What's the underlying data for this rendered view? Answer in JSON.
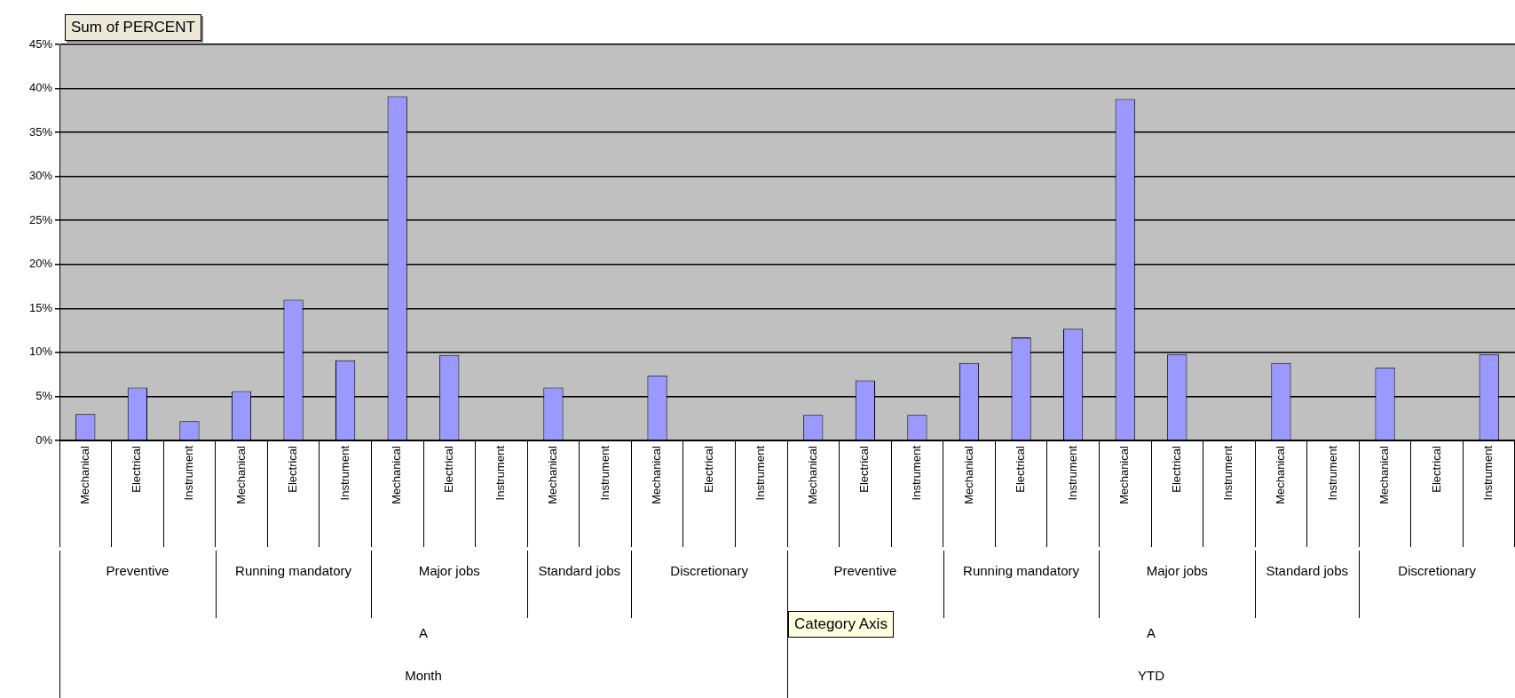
{
  "chart_data": {
    "type": "bar",
    "title": "Sum of PERCENT",
    "categories": [
      "Mechanical",
      "Electrical",
      "Instrument",
      "Mechanical",
      "Electrical",
      "Instrument",
      "Mechanical",
      "Electrical",
      "Instrument",
      "Mechanical",
      "Instrument",
      "Mechanical",
      "Electrical",
      "Instrument",
      "Mechanical",
      "Electrical",
      "Instrument",
      "Mechanical",
      "Electrical",
      "Instrument",
      "Mechanical",
      "Electrical",
      "Instrument",
      "Mechanical",
      "Instrument",
      "Mechanical",
      "Electrical",
      "Instrument"
    ],
    "values": [
      3.0,
      6.0,
      2.2,
      5.6,
      16.0,
      9.1,
      39.1,
      9.7,
      null,
      6.0,
      null,
      7.4,
      null,
      null,
      2.9,
      6.8,
      2.9,
      8.8,
      11.7,
      12.7,
      38.8,
      9.8,
      null,
      8.8,
      null,
      8.3,
      null,
      9.8
    ],
    "color": "#9999ff",
    "ylim": [
      0,
      45
    ],
    "yticks": [
      {
        "value": 0,
        "label": "0%"
      },
      {
        "value": 5,
        "label": "5%"
      },
      {
        "value": 10,
        "label": "10%"
      },
      {
        "value": 15,
        "label": "15%"
      },
      {
        "value": 20,
        "label": "20%"
      },
      {
        "value": 25,
        "label": "25%"
      },
      {
        "value": 30,
        "label": "30%"
      },
      {
        "value": 35,
        "label": "35%"
      },
      {
        "value": 40,
        "label": "40%"
      },
      {
        "value": 45,
        "label": "45%"
      }
    ],
    "grid": "y",
    "annotations": [
      "Preventive",
      "Running mandatory",
      "Major jobs",
      "Standard jobs",
      "Discretionary",
      "Preventive",
      "Running mandatory",
      "Major jobs",
      "Standard jobs",
      "Discretionary",
      "A",
      "A",
      "Month",
      "YTD",
      "Category Axis"
    ]
  }
}
